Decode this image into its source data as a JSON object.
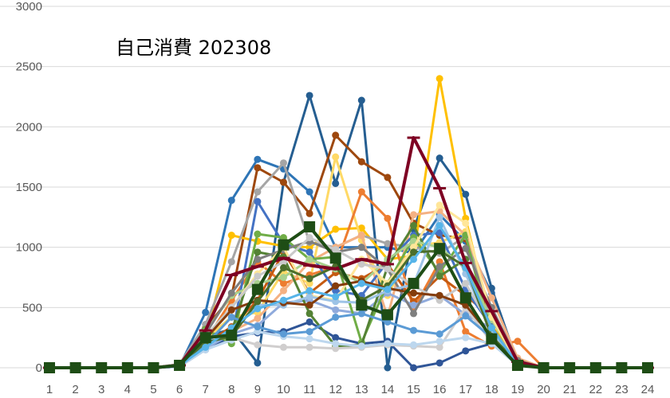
{
  "chart_data": {
    "type": "line",
    "title": "自己消費 202308",
    "xlabel": "",
    "ylabel": "",
    "ylim": [
      0,
      3000
    ],
    "yticks": [
      0,
      500,
      1000,
      1500,
      2000,
      2500,
      3000
    ],
    "x": [
      1,
      2,
      3,
      4,
      5,
      6,
      7,
      8,
      9,
      10,
      11,
      12,
      13,
      14,
      15,
      16,
      17,
      18,
      19,
      20,
      21,
      22,
      23,
      24
    ],
    "grid": true,
    "legend": "none",
    "series": [
      {
        "color": "#2e75b6",
        "marker": "circle",
        "values": [
          0,
          0,
          0,
          0,
          0,
          10,
          460,
          1390,
          1730,
          1650,
          1460,
          1000,
          1000,
          1000,
          950,
          1270,
          1050,
          620,
          60,
          0,
          0,
          0,
          0,
          0
        ]
      },
      {
        "color": "#255e91",
        "marker": "circle",
        "values": [
          0,
          0,
          0,
          0,
          0,
          20,
          260,
          320,
          40,
          1540,
          2260,
          1530,
          2220,
          0,
          1150,
          1740,
          1440,
          660,
          40,
          0,
          0,
          0,
          0,
          0
        ]
      },
      {
        "color": "#9e480e",
        "marker": "circle",
        "values": [
          0,
          0,
          0,
          0,
          0,
          30,
          330,
          590,
          1660,
          1540,
          1280,
          1930,
          1710,
          1580,
          1200,
          1100,
          1070,
          350,
          30,
          0,
          0,
          0,
          0,
          0
        ]
      },
      {
        "color": "#ffc000",
        "marker": "circle",
        "values": [
          0,
          0,
          0,
          0,
          0,
          20,
          240,
          1100,
          1050,
          1010,
          1000,
          1150,
          1160,
          900,
          930,
          2400,
          1240,
          350,
          60,
          0,
          0,
          0,
          0,
          0
        ]
      },
      {
        "color": "#ffd966",
        "marker": "circle",
        "values": [
          0,
          0,
          0,
          0,
          0,
          20,
          240,
          420,
          460,
          800,
          700,
          1750,
          1060,
          600,
          1010,
          1040,
          1130,
          250,
          50,
          0,
          0,
          0,
          0,
          0
        ]
      },
      {
        "color": "#a5a5a5",
        "marker": "circle",
        "values": [
          0,
          0,
          0,
          0,
          0,
          30,
          360,
          880,
          1460,
          1700,
          1040,
          1000,
          1100,
          1030,
          1000,
          950,
          1090,
          400,
          70,
          0,
          0,
          0,
          0,
          0
        ]
      },
      {
        "color": "#ed7d31",
        "marker": "circle",
        "values": [
          0,
          0,
          0,
          0,
          0,
          20,
          220,
          560,
          880,
          700,
          770,
          840,
          1460,
          1240,
          490,
          880,
          300,
          180,
          220,
          0,
          0,
          0,
          0,
          0
        ]
      },
      {
        "color": "#f4b183",
        "marker": "circle",
        "values": [
          0,
          0,
          0,
          0,
          0,
          20,
          180,
          300,
          410,
          640,
          880,
          1000,
          1100,
          420,
          1270,
          1300,
          1100,
          580,
          80,
          0,
          0,
          0,
          0,
          0
        ]
      },
      {
        "color": "#c55a11",
        "marker": "circle",
        "values": [
          0,
          0,
          0,
          0,
          0,
          20,
          200,
          340,
          560,
          960,
          620,
          790,
          740,
          860,
          550,
          760,
          600,
          420,
          60,
          0,
          0,
          0,
          0,
          0
        ]
      },
      {
        "color": "#4472c4",
        "marker": "circle",
        "values": [
          0,
          0,
          0,
          0,
          0,
          20,
          200,
          240,
          1380,
          1030,
          960,
          640,
          600,
          880,
          1100,
          1120,
          650,
          340,
          30,
          0,
          0,
          0,
          0,
          0
        ]
      },
      {
        "color": "#2f5597",
        "marker": "circle",
        "values": [
          0,
          0,
          0,
          0,
          0,
          10,
          150,
          260,
          290,
          300,
          380,
          250,
          200,
          220,
          0,
          40,
          140,
          200,
          30,
          0,
          0,
          0,
          0,
          0
        ]
      },
      {
        "color": "#8faadc",
        "marker": "circle",
        "values": [
          0,
          0,
          0,
          0,
          0,
          10,
          160,
          280,
          350,
          540,
          560,
          480,
          450,
          620,
          520,
          600,
          440,
          330,
          40,
          0,
          0,
          0,
          0,
          0
        ]
      },
      {
        "color": "#70ad47",
        "marker": "circle",
        "values": [
          0,
          0,
          0,
          0,
          0,
          20,
          320,
          200,
          1110,
          1080,
          900,
          920,
          210,
          700,
          1080,
          790,
          1100,
          250,
          50,
          0,
          0,
          0,
          0,
          0
        ]
      },
      {
        "color": "#548235",
        "marker": "circle",
        "values": [
          0,
          0,
          0,
          0,
          0,
          20,
          220,
          300,
          960,
          920,
          450,
          180,
          190,
          840,
          1180,
          760,
          900,
          330,
          30,
          0,
          0,
          0,
          0,
          0
        ]
      },
      {
        "color": "#a9d18e",
        "marker": "circle",
        "values": [
          0,
          0,
          0,
          0,
          0,
          20,
          300,
          600,
          700,
          750,
          900,
          820,
          700,
          900,
          1050,
          1000,
          820,
          400,
          50,
          0,
          0,
          0,
          0,
          0
        ]
      },
      {
        "color": "#d0cece",
        "marker": "circle",
        "values": [
          0,
          0,
          0,
          0,
          0,
          10,
          230,
          250,
          190,
          170,
          170,
          160,
          170,
          190,
          180,
          170,
          500,
          210,
          20,
          0,
          0,
          0,
          0,
          0
        ]
      },
      {
        "color": "#7f7f7f",
        "marker": "circle",
        "values": [
          0,
          0,
          0,
          0,
          0,
          20,
          280,
          620,
          900,
          980,
          1050,
          960,
          1000,
          820,
          450,
          840,
          990,
          500,
          60,
          0,
          0,
          0,
          0,
          0
        ]
      },
      {
        "color": "#bdd7ee",
        "marker": "circle",
        "values": [
          0,
          0,
          0,
          0,
          0,
          10,
          150,
          230,
          300,
          260,
          240,
          200,
          180,
          200,
          190,
          220,
          250,
          200,
          20,
          0,
          0,
          0,
          0,
          0
        ]
      },
      {
        "color": "#ffe699",
        "marker": "circle",
        "values": [
          0,
          0,
          0,
          0,
          0,
          20,
          260,
          500,
          780,
          1000,
          600,
          560,
          900,
          700,
          1000,
          1350,
          1200,
          420,
          40,
          0,
          0,
          0,
          0,
          0
        ]
      },
      {
        "color": "#9dc3e6",
        "marker": "circle",
        "values": [
          0,
          0,
          0,
          0,
          0,
          20,
          170,
          300,
          520,
          520,
          590,
          550,
          540,
          640,
          690,
          1250,
          780,
          300,
          30,
          0,
          0,
          0,
          0,
          0
        ]
      },
      {
        "color": "#5b9bd5",
        "marker": "circle",
        "values": [
          0,
          0,
          0,
          0,
          0,
          10,
          190,
          420,
          340,
          280,
          300,
          420,
          450,
          380,
          310,
          280,
          430,
          250,
          20,
          0,
          0,
          0,
          0,
          0
        ]
      },
      {
        "color": "#c9c9c9",
        "marker": "circle",
        "values": [
          0,
          0,
          0,
          0,
          0,
          20,
          260,
          500,
          760,
          880,
          1080,
          980,
          860,
          820,
          680,
          560,
          700,
          330,
          40,
          0,
          0,
          0,
          0,
          0
        ]
      },
      {
        "color": "#843c0c",
        "marker": "circle",
        "values": [
          0,
          0,
          0,
          0,
          0,
          20,
          240,
          480,
          560,
          540,
          520,
          680,
          720,
          660,
          620,
          600,
          520,
          260,
          30,
          0,
          0,
          0,
          0,
          0
        ]
      },
      {
        "color": "#4b6e2b",
        "marker": "circle",
        "values": [
          0,
          0,
          0,
          0,
          0,
          20,
          210,
          260,
          550,
          830,
          740,
          840,
          560,
          680,
          960,
          970,
          840,
          260,
          40,
          0,
          0,
          0,
          0,
          0
        ]
      },
      {
        "color": "#56b4e9",
        "marker": "circle",
        "values": [
          0,
          0,
          0,
          0,
          0,
          20,
          170,
          330,
          490,
          560,
          640,
          590,
          700,
          650,
          900,
          1180,
          830,
          330,
          30,
          0,
          0,
          0,
          0,
          0
        ]
      },
      {
        "color": "#7e0023",
        "marker": "dash",
        "width": 4,
        "values": [
          0,
          0,
          0,
          0,
          0,
          20,
          310,
          770,
          840,
          910,
          850,
          820,
          900,
          860,
          1910,
          1490,
          870,
          470,
          50,
          0,
          0,
          0,
          0,
          0
        ]
      },
      {
        "color": "#1e4d15",
        "marker": "square",
        "width": 4,
        "values": [
          0,
          0,
          0,
          0,
          0,
          20,
          250,
          270,
          650,
          1020,
          1170,
          910,
          520,
          440,
          700,
          990,
          580,
          240,
          20,
          0,
          0,
          0,
          0,
          0
        ]
      }
    ]
  }
}
